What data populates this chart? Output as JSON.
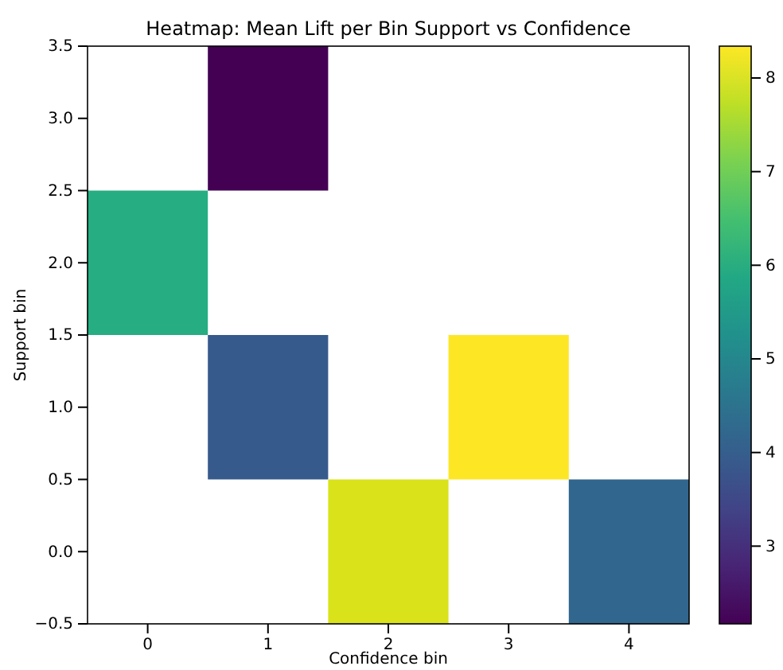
{
  "chart_data": {
    "type": "heatmap",
    "title": "Heatmap: Mean Lift per Bin Support vs Confidence",
    "xlabel": "Confidence bin",
    "ylabel": "Support bin",
    "categories": [
      "0",
      "1",
      "2",
      "3",
      "4"
    ],
    "ylim": [
      -0.5,
      3.5
    ],
    "yticks": [
      {
        "value": -0.5,
        "label": "−0.5"
      },
      {
        "value": 0,
        "label": "0.0"
      },
      {
        "value": 0.5,
        "label": "0.5"
      },
      {
        "value": 1,
        "label": "1.0"
      },
      {
        "value": 1.5,
        "label": "1.5"
      },
      {
        "value": 2,
        "label": "2.0"
      },
      {
        "value": 2.5,
        "label": "2.5"
      },
      {
        "value": 3,
        "label": "3.0"
      },
      {
        "value": 3.5,
        "label": "3.5"
      }
    ],
    "cells": [
      [
        null,
        2.17,
        null,
        null,
        null
      ],
      [
        6.0,
        null,
        null,
        null,
        null
      ],
      [
        null,
        3.9,
        null,
        8.34,
        null
      ],
      [
        null,
        null,
        8.0,
        null,
        4.2
      ]
    ],
    "clim": [
      2.17,
      8.34
    ],
    "cticks": [
      3,
      4,
      5,
      6,
      7,
      8
    ]
  }
}
